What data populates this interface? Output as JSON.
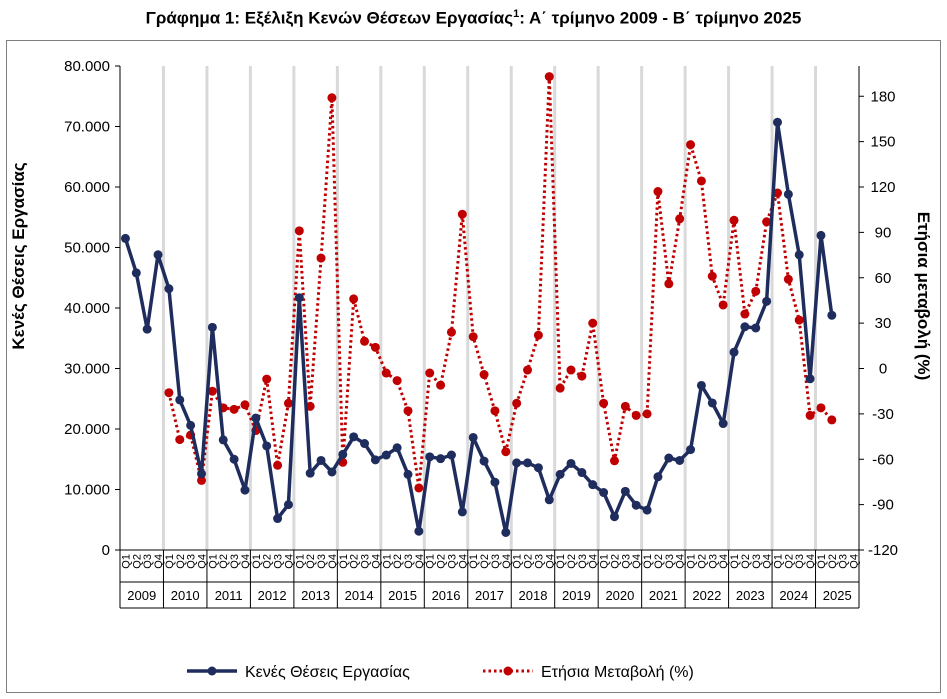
{
  "title": {
    "main": "Γράφημα 1: Εξέλιξη Κενών Θέσεων Εργασίας",
    "sup": "1",
    "rest": ": Α΄ τρίμηνο 2009 - Β΄ τρίμηνο 2025"
  },
  "chart_data": {
    "type": "line",
    "title": "Γράφημα 1: Εξέλιξη Κενών Θέσεων Εργασίας1: Α΄ τρίμηνο 2009 - Β΄ τρίμηνο 2025",
    "ylabel": "Κενές Θέσεις Εργασίας",
    "y2label": "Ετήσια μεταβολή (%)",
    "ylim": [
      0,
      80000
    ],
    "y2lim": [
      -120,
      200
    ],
    "yticks": [
      "0",
      "10.000",
      "20.000",
      "30.000",
      "40.000",
      "50.000",
      "60.000",
      "70.000",
      "80.000"
    ],
    "y2ticks": [
      "-120",
      "-90",
      "-60",
      "-30",
      "0",
      "30",
      "60",
      "90",
      "120",
      "150",
      "180"
    ],
    "quarter_labels": [
      "Q1",
      "Q2",
      "Q3",
      "Q4"
    ],
    "years": [
      "2009",
      "2010",
      "2011",
      "2012",
      "2013",
      "2014",
      "2015",
      "2016",
      "2017",
      "2018",
      "2019",
      "2020",
      "2021",
      "2022",
      "2023",
      "2024",
      "2025"
    ],
    "grid": "vertical lines at year boundaries",
    "legend": "bottom",
    "colors": {
      "vacancies": "#1f2d5e",
      "change": "#c00000",
      "grid": "#d9d9d9",
      "axis": "#000000"
    },
    "series": [
      {
        "name": "Κενές Θέσεις Εργασίας",
        "axis": "left",
        "style": "solid line with markers",
        "values": [
          51500,
          45800,
          36500,
          48800,
          43200,
          24800,
          20600,
          12600,
          36800,
          18200,
          15000,
          9900,
          21800,
          17200,
          5200,
          7500,
          41700,
          12700,
          14800,
          12900,
          15800,
          18700,
          17600,
          14900,
          15700,
          16900,
          12500,
          3100,
          15400,
          15100,
          15700,
          6300,
          18600,
          14700,
          11200,
          2900,
          14400,
          14400,
          13600,
          8300,
          12500,
          14300,
          12800,
          10800,
          9500,
          5500,
          9700,
          7400,
          6600,
          12100,
          15200,
          14800,
          16600,
          27200,
          24300,
          20900,
          32700,
          36900,
          36700,
          41100,
          70700,
          58800,
          48800,
          28300,
          52000,
          38800
        ]
      },
      {
        "name": "Ετήσια Μεταβολή (%)",
        "axis": "right",
        "style": "dotted line with markers",
        "values": [
          null,
          null,
          null,
          null,
          -16,
          -47,
          -44,
          -74,
          -15,
          -26,
          -27,
          -24,
          -41,
          -7,
          -64,
          -23,
          91,
          -25,
          73,
          179,
          -62,
          46,
          18,
          14,
          -3,
          -8,
          -28,
          -79,
          -3,
          -11,
          24,
          102,
          21,
          -4,
          -28,
          -55,
          -23,
          -1,
          22,
          193,
          -13,
          -1,
          -5,
          30,
          -23,
          -61,
          -25,
          -31,
          -30,
          117,
          56,
          99,
          148,
          124,
          61,
          42,
          98,
          36,
          51,
          97,
          116,
          59,
          32,
          -31,
          -26,
          -34
        ]
      }
    ]
  }
}
